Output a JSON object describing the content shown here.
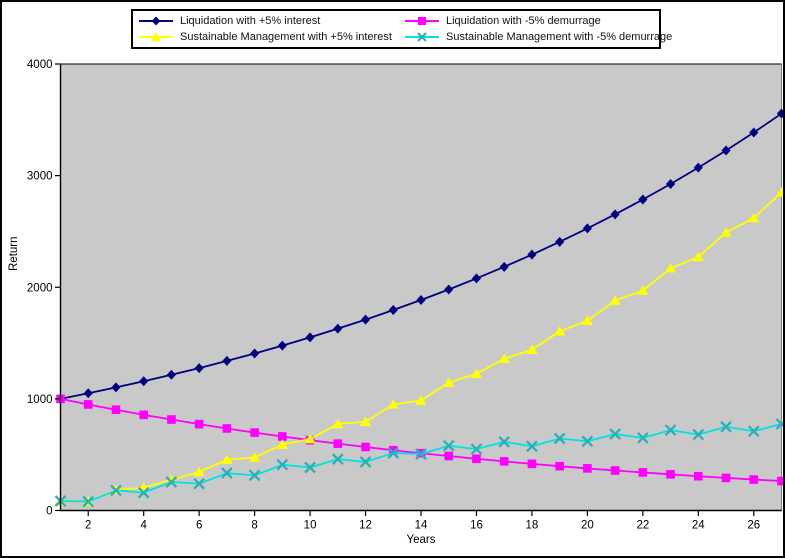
{
  "figure": {
    "background": "#ffffff",
    "border_color": "#000000",
    "plot_background": "#c9c9c9",
    "plot_outline": "#808080",
    "axis_color": "#000000",
    "tick_label_color": "#000000"
  },
  "chart_data": {
    "type": "line",
    "title": "",
    "xlabel": "Years",
    "ylabel": "Return",
    "xlim": [
      1,
      27
    ],
    "ylim": [
      0,
      4000
    ],
    "x_ticks": [
      2,
      4,
      6,
      8,
      10,
      12,
      14,
      16,
      18,
      20,
      22,
      24,
      26
    ],
    "y_ticks": [
      0,
      1000,
      2000,
      3000,
      4000
    ],
    "grid": false,
    "legend_position": "top-center",
    "x": [
      1,
      2,
      3,
      4,
      5,
      6,
      7,
      8,
      9,
      10,
      11,
      12,
      13,
      14,
      15,
      16,
      17,
      18,
      19,
      20,
      21,
      22,
      23,
      24,
      25,
      26,
      27
    ],
    "series": [
      {
        "name": "Liquidation with +5% interest",
        "marker": "diamond",
        "line_color": "#000080",
        "marker_color": "#000080",
        "values": [
          1000,
          1050,
          1103,
          1158,
          1216,
          1276,
          1340,
          1407,
          1477,
          1551,
          1629,
          1710,
          1796,
          1886,
          1980,
          2079,
          2183,
          2292,
          2407,
          2527,
          2653,
          2786,
          2925,
          3072,
          3225,
          3386,
          3556
        ]
      },
      {
        "name": "Liquidation with -5% demurrage",
        "marker": "square",
        "line_color": "#ff00ff",
        "marker_color": "#ff00ff",
        "values": [
          1000,
          950,
          903,
          857,
          815,
          774,
          735,
          698,
          663,
          630,
          599,
          569,
          540,
          513,
          488,
          463,
          440,
          418,
          397,
          377,
          358,
          341,
          324,
          307,
          292,
          277,
          264
        ]
      },
      {
        "name": "Sustainable Management with +5% interest",
        "marker": "triangle",
        "line_color": "#ffff00",
        "marker_color": "#ffff00",
        "values": [
          85,
          80,
          185,
          205,
          275,
          345,
          455,
          475,
          590,
          640,
          775,
          795,
          950,
          985,
          1145,
          1225,
          1360,
          1440,
          1605,
          1700,
          1880,
          1970,
          2170,
          2270,
          2490,
          2620,
          2850
        ]
      },
      {
        "name": "Sustainable Management with -5% demurrage",
        "marker": "x",
        "line_color": "#00e2e2",
        "marker_color": "#2fadb5",
        "values": [
          85,
          80,
          180,
          160,
          255,
          240,
          335,
          315,
          410,
          385,
          460,
          435,
          515,
          505,
          580,
          550,
          615,
          575,
          645,
          620,
          685,
          650,
          720,
          680,
          750,
          710,
          775
        ]
      }
    ]
  }
}
